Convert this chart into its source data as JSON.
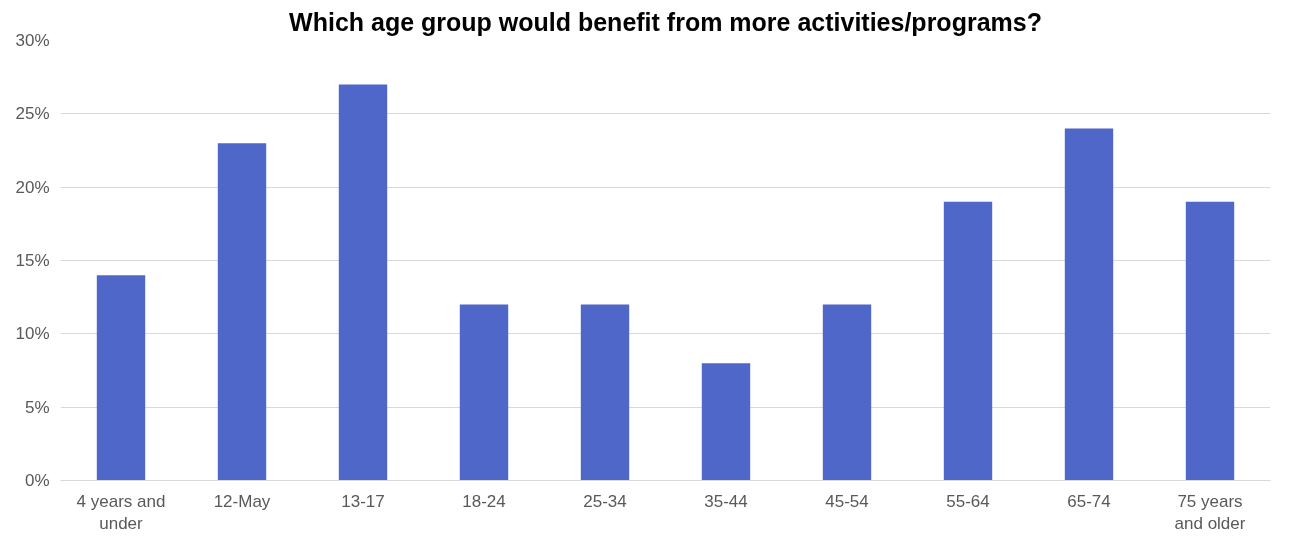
{
  "chart_data": {
    "type": "bar",
    "title": "Which age group would benefit from more activities/programs?",
    "categories": [
      "4 years and under",
      "12-May",
      "13-17",
      "18-24",
      "25-34",
      "35-44",
      "45-54",
      "55-64",
      "65-74",
      "75 years and older"
    ],
    "values": [
      14,
      23,
      27,
      12,
      12,
      8,
      12,
      19,
      24,
      19
    ],
    "color": "#4f67c9",
    "ylim": [
      0,
      30
    ],
    "yticks": [
      {
        "value": 0,
        "label": "0%"
      },
      {
        "value": 5,
        "label": "5%"
      },
      {
        "value": 10,
        "label": "10%"
      },
      {
        "value": 15,
        "label": "15%"
      },
      {
        "value": 20,
        "label": "20%"
      },
      {
        "value": 25,
        "label": "25%"
      },
      {
        "value": 30,
        "label": "30%"
      }
    ],
    "grid": "y"
  }
}
